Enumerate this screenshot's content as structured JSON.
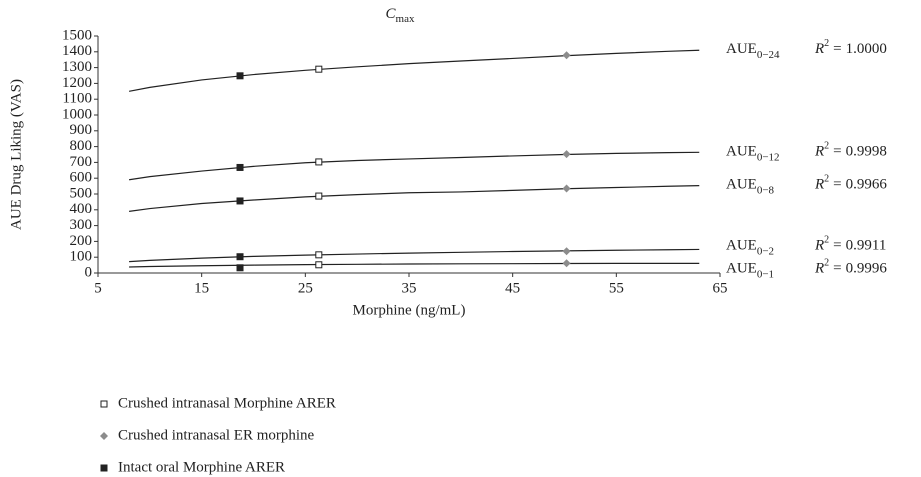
{
  "chart_data": {
    "type": "scatter",
    "title": "C",
    "title_sub": "max",
    "x_label": "Morphine (ng/mL)",
    "y_label": "AUE Drug Liking (VAS)",
    "xlim": [
      5,
      65
    ],
    "xticks": [
      5,
      15,
      25,
      35,
      45,
      55,
      65
    ],
    "ylim": [
      0,
      1500
    ],
    "yticks": [
      0,
      100,
      200,
      300,
      400,
      500,
      600,
      700,
      800,
      900,
      1000,
      1100,
      1200,
      1300,
      1400,
      1500
    ],
    "grid": false,
    "series": [
      {
        "name": "Crushed intranasal Morphine ARER",
        "marker": "open-square",
        "color": "#222222",
        "x": [
          26.3,
          26.3,
          26.3,
          26.3,
          26.3
        ],
        "values": [
          1290,
          703,
          487,
          115,
          52
        ]
      },
      {
        "name": "Crushed intranasal ER morphine",
        "marker": "diamond",
        "color": "#8c8c8c",
        "x": [
          50.2,
          50.2,
          50.2,
          50.2,
          50.2
        ],
        "values": [
          1378,
          752,
          535,
          138,
          62
        ]
      },
      {
        "name": "Intact oral Morphine ARER",
        "marker": "square",
        "color": "#222222",
        "x": [
          18.7,
          18.7,
          18.7,
          18.7,
          18.7
        ],
        "values": [
          1248,
          668,
          456,
          103,
          33
        ]
      }
    ],
    "r2_symbol": "R",
    "r2_power": "2",
    "r2_equals": "=",
    "curve_x": [
      8,
      10,
      15,
      20,
      25,
      30,
      35,
      40,
      45,
      50,
      55,
      60,
      63
    ],
    "curves": [
      {
        "name": "AUE",
        "sub": "0−24",
        "r2": {
          "value": 1.0,
          "label": "1.0000"
        },
        "values": [
          1150,
          1175,
          1222,
          1256,
          1283,
          1305,
          1325,
          1342,
          1358,
          1375,
          1390,
          1403,
          1410
        ]
      },
      {
        "name": "AUE",
        "sub": "0−12",
        "r2": {
          "value": 0.9998,
          "label": "0.9998"
        },
        "values": [
          590,
          610,
          645,
          675,
          698,
          712,
          722,
          731,
          741,
          750,
          757,
          762,
          764
        ]
      },
      {
        "name": "AUE",
        "sub": "0−8",
        "r2": {
          "value": 0.9966,
          "label": "0.9966"
        },
        "values": [
          390,
          408,
          440,
          462,
          482,
          496,
          508,
          513,
          523,
          533,
          541,
          549,
          553
        ]
      },
      {
        "name": "AUE",
        "sub": "0−2",
        "r2": {
          "value": 0.9911,
          "label": "0.9911"
        },
        "values": [
          72,
          80,
          94,
          105,
          113,
          120,
          126,
          131,
          136,
          140,
          144,
          147,
          149
        ]
      },
      {
        "name": "AUE",
        "sub": "0−1",
        "r2": {
          "value": 0.9996,
          "label": "0.9996"
        },
        "values": [
          38,
          41,
          46,
          50,
          53,
          55,
          57,
          58,
          59,
          60,
          61,
          61,
          61
        ]
      }
    ]
  }
}
